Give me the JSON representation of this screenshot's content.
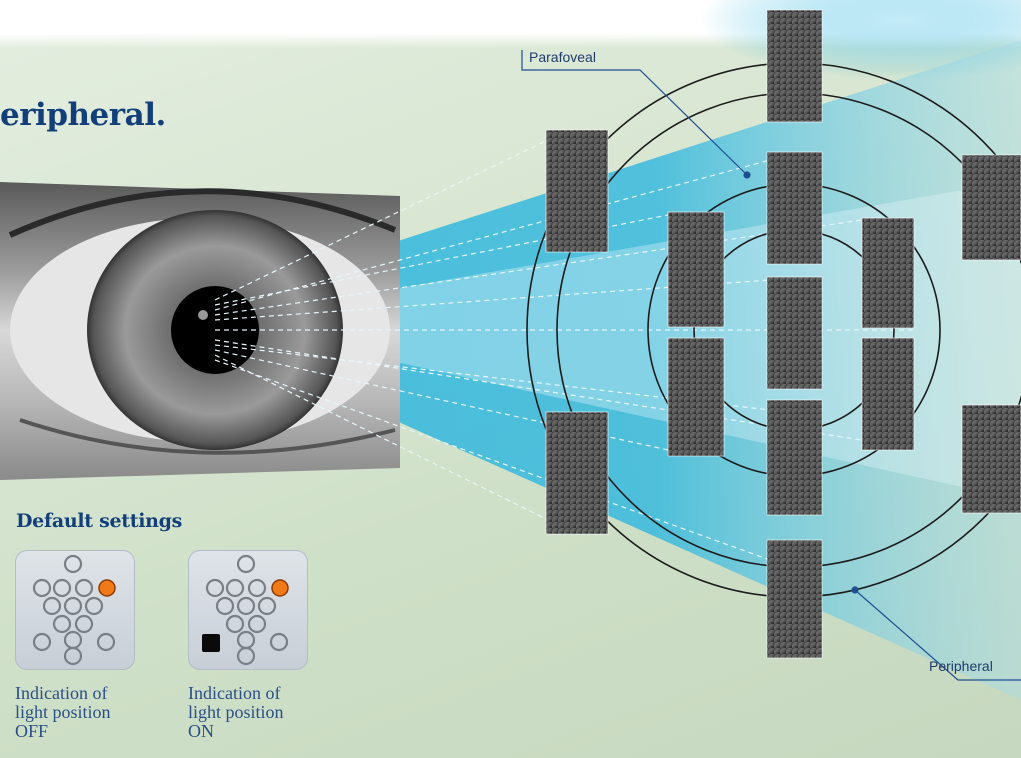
{
  "headline": "eripheral.",
  "labels": {
    "parafoveal": "Parafoveal",
    "peripheral": "Peripheral"
  },
  "default_settings": {
    "title": "Default settings",
    "indicators": [
      {
        "state": "OFF",
        "caption_lines": [
          "Indication of",
          "light position",
          "OFF"
        ]
      },
      {
        "state": "ON",
        "caption_lines": [
          "Indication of",
          "light position",
          "ON"
        ]
      }
    ]
  },
  "colors": {
    "title": "#123e7a",
    "beam": "#2fb7df",
    "ring": "#1b1b1b",
    "led": "#f07a18",
    "leader": "#1e4f8f"
  }
}
